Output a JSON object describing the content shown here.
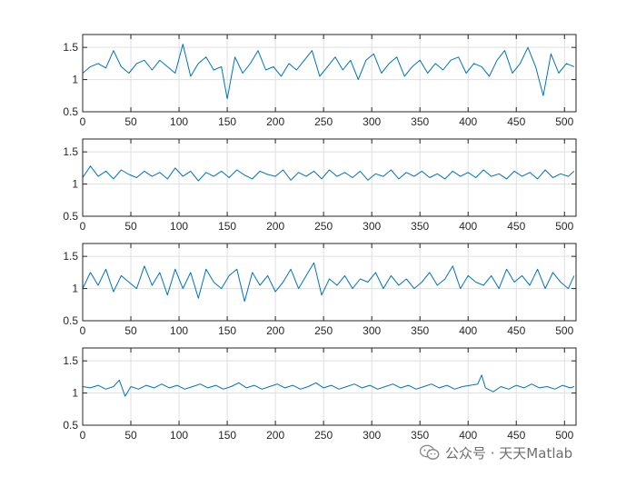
{
  "chart_data": [
    {
      "type": "line",
      "title": "",
      "xlabel": "",
      "ylabel": "",
      "xlim": [
        0,
        512
      ],
      "ylim": [
        0.5,
        1.7
      ],
      "xticks": [
        0,
        50,
        100,
        150,
        200,
        250,
        300,
        350,
        400,
        450,
        500
      ],
      "yticks": [
        0.5,
        1,
        1.5
      ],
      "ytick_labels": [
        "0.5",
        "1",
        "1.5"
      ],
      "grid": true,
      "series": [
        {
          "color": "#0072BD",
          "x": [
            0,
            8,
            16,
            24,
            32,
            40,
            48,
            56,
            64,
            72,
            80,
            88,
            96,
            104,
            112,
            120,
            128,
            136,
            144,
            150,
            158,
            166,
            174,
            182,
            190,
            198,
            206,
            214,
            222,
            230,
            238,
            246,
            254,
            262,
            270,
            278,
            286,
            294,
            302,
            310,
            318,
            326,
            334,
            342,
            350,
            358,
            366,
            374,
            382,
            390,
            398,
            406,
            414,
            422,
            430,
            438,
            446,
            454,
            462,
            470,
            478,
            486,
            494,
            502,
            510
          ],
          "y": [
            1.1,
            1.2,
            1.25,
            1.18,
            1.45,
            1.2,
            1.1,
            1.25,
            1.3,
            1.15,
            1.3,
            1.2,
            1.1,
            1.55,
            1.05,
            1.25,
            1.35,
            1.15,
            1.2,
            0.7,
            1.35,
            1.1,
            1.25,
            1.45,
            1.15,
            1.2,
            1.05,
            1.25,
            1.15,
            1.3,
            1.45,
            1.05,
            1.2,
            1.35,
            1.15,
            1.3,
            1.0,
            1.3,
            1.4,
            1.1,
            1.25,
            1.35,
            1.05,
            1.2,
            1.3,
            1.1,
            1.25,
            1.15,
            1.3,
            1.35,
            1.1,
            1.25,
            1.2,
            1.05,
            1.3,
            1.45,
            1.1,
            1.25,
            1.5,
            1.2,
            0.75,
            1.4,
            1.1,
            1.25,
            1.2
          ]
        }
      ]
    },
    {
      "type": "line",
      "title": "",
      "xlabel": "",
      "ylabel": "",
      "xlim": [
        0,
        512
      ],
      "ylim": [
        0.5,
        1.7
      ],
      "xticks": [
        0,
        50,
        100,
        150,
        200,
        250,
        300,
        350,
        400,
        450,
        500
      ],
      "yticks": [
        0.5,
        1,
        1.5
      ],
      "ytick_labels": [
        "0.5",
        "1",
        "1.5"
      ],
      "grid": true,
      "series": [
        {
          "color": "#0072BD",
          "x": [
            0,
            8,
            16,
            24,
            32,
            40,
            48,
            56,
            64,
            72,
            80,
            88,
            96,
            104,
            112,
            120,
            128,
            136,
            144,
            152,
            160,
            168,
            176,
            184,
            192,
            200,
            208,
            216,
            224,
            232,
            240,
            248,
            256,
            264,
            272,
            280,
            288,
            296,
            304,
            312,
            320,
            328,
            336,
            344,
            352,
            360,
            368,
            376,
            384,
            392,
            400,
            408,
            416,
            424,
            432,
            440,
            448,
            456,
            464,
            472,
            480,
            488,
            496,
            504,
            510
          ],
          "y": [
            1.1,
            1.28,
            1.12,
            1.2,
            1.08,
            1.22,
            1.15,
            1.1,
            1.2,
            1.12,
            1.18,
            1.08,
            1.25,
            1.12,
            1.2,
            1.05,
            1.18,
            1.12,
            1.2,
            1.1,
            1.22,
            1.14,
            1.08,
            1.2,
            1.15,
            1.12,
            1.22,
            1.06,
            1.18,
            1.12,
            1.2,
            1.08,
            1.22,
            1.12,
            1.18,
            1.1,
            1.2,
            1.06,
            1.16,
            1.12,
            1.22,
            1.08,
            1.18,
            1.12,
            1.2,
            1.1,
            1.16,
            1.08,
            1.2,
            1.12,
            1.18,
            1.1,
            1.22,
            1.12,
            1.16,
            1.08,
            1.2,
            1.12,
            1.18,
            1.08,
            1.22,
            1.1,
            1.16,
            1.12,
            1.2
          ]
        }
      ]
    },
    {
      "type": "line",
      "title": "",
      "xlabel": "",
      "ylabel": "",
      "xlim": [
        0,
        512
      ],
      "ylim": [
        0.5,
        1.7
      ],
      "xticks": [
        0,
        50,
        100,
        150,
        200,
        250,
        300,
        350,
        400,
        450,
        500
      ],
      "yticks": [
        0.5,
        1,
        1.5
      ],
      "ytick_labels": [
        "0.5",
        "1",
        "1.5"
      ],
      "grid": true,
      "series": [
        {
          "color": "#0072BD",
          "x": [
            0,
            8,
            16,
            24,
            32,
            40,
            48,
            56,
            64,
            72,
            80,
            88,
            96,
            104,
            112,
            120,
            128,
            136,
            144,
            152,
            160,
            168,
            176,
            184,
            192,
            200,
            208,
            216,
            224,
            232,
            240,
            248,
            256,
            264,
            272,
            280,
            288,
            296,
            304,
            312,
            320,
            328,
            336,
            344,
            352,
            360,
            368,
            376,
            384,
            392,
            400,
            408,
            416,
            424,
            432,
            440,
            448,
            456,
            464,
            472,
            480,
            488,
            496,
            504,
            510
          ],
          "y": [
            1.0,
            1.25,
            1.05,
            1.3,
            0.95,
            1.2,
            1.1,
            1.0,
            1.35,
            1.05,
            1.25,
            0.9,
            1.3,
            1.0,
            1.25,
            0.85,
            1.3,
            1.1,
            1.0,
            1.2,
            1.3,
            0.8,
            1.25,
            1.05,
            1.2,
            0.95,
            1.1,
            1.3,
            1.0,
            1.2,
            1.4,
            0.9,
            1.15,
            1.05,
            1.2,
            1.0,
            1.15,
            1.1,
            1.25,
            1.0,
            1.2,
            1.05,
            1.15,
            1.0,
            1.1,
            1.25,
            1.05,
            1.15,
            1.35,
            1.0,
            1.2,
            1.1,
            1.05,
            1.2,
            1.0,
            1.3,
            1.1,
            1.2,
            1.05,
            1.3,
            1.0,
            1.25,
            1.1,
            1.0,
            1.2
          ]
        }
      ]
    },
    {
      "type": "line",
      "title": "",
      "xlabel": "",
      "ylabel": "",
      "xlim": [
        0,
        512
      ],
      "ylim": [
        0.5,
        1.7
      ],
      "xticks": [
        0,
        50,
        100,
        150,
        200,
        250,
        300,
        350,
        400,
        450,
        500
      ],
      "yticks": [
        0.5,
        1,
        1.5
      ],
      "ytick_labels": [
        "0.5",
        "1",
        "1.5"
      ],
      "grid": true,
      "series": [
        {
          "color": "#0072BD",
          "x": [
            0,
            8,
            16,
            24,
            32,
            38,
            44,
            50,
            58,
            66,
            74,
            82,
            90,
            98,
            106,
            114,
            122,
            130,
            138,
            146,
            154,
            162,
            170,
            178,
            186,
            194,
            202,
            210,
            218,
            226,
            234,
            242,
            250,
            258,
            266,
            274,
            282,
            290,
            298,
            306,
            314,
            322,
            330,
            338,
            346,
            354,
            362,
            370,
            378,
            386,
            394,
            402,
            410,
            414,
            418,
            426,
            434,
            442,
            450,
            458,
            466,
            474,
            482,
            490,
            498,
            506,
            510
          ],
          "y": [
            1.1,
            1.08,
            1.12,
            1.06,
            1.1,
            1.2,
            0.95,
            1.1,
            1.06,
            1.12,
            1.08,
            1.14,
            1.08,
            1.12,
            1.06,
            1.1,
            1.14,
            1.08,
            1.12,
            1.06,
            1.1,
            1.16,
            1.08,
            1.12,
            1.06,
            1.1,
            1.14,
            1.08,
            1.12,
            1.06,
            1.1,
            1.16,
            1.08,
            1.12,
            1.06,
            1.1,
            1.14,
            1.08,
            1.12,
            1.06,
            1.1,
            1.14,
            1.08,
            1.12,
            1.06,
            1.1,
            1.14,
            1.08,
            1.12,
            1.06,
            1.1,
            1.12,
            1.14,
            1.28,
            1.08,
            1.02,
            1.1,
            1.06,
            1.12,
            1.08,
            1.14,
            1.08,
            1.1,
            1.06,
            1.12,
            1.08,
            1.1
          ]
        }
      ]
    }
  ],
  "watermark": {
    "text": "公众号 · 天天Matlab",
    "icon": "wechat-icon"
  }
}
